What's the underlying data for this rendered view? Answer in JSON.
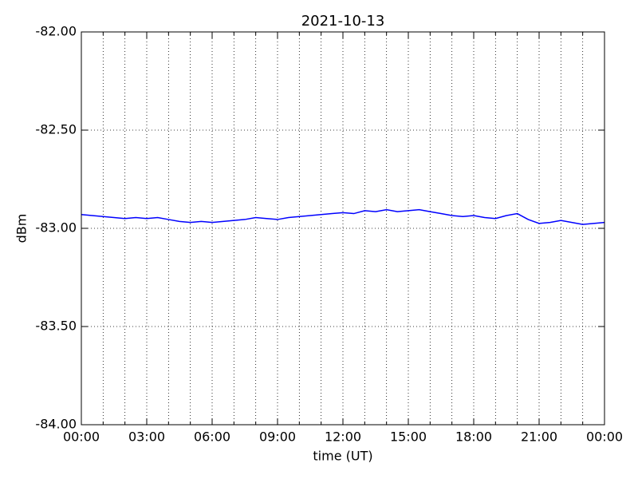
{
  "chart_data": {
    "type": "line",
    "title": "2021-10-13",
    "xlabel": "time (UT)",
    "ylabel": "dBm",
    "x": [
      0,
      0.5,
      1,
      1.5,
      2,
      2.5,
      3,
      3.5,
      4,
      4.5,
      5,
      5.5,
      6,
      6.5,
      7,
      7.5,
      8,
      8.5,
      9,
      9.5,
      10,
      10.5,
      11,
      11.5,
      12,
      12.5,
      13,
      13.5,
      14,
      14.5,
      15,
      15.5,
      16,
      16.5,
      17,
      17.5,
      18,
      18.5,
      19,
      19.5,
      20,
      20.5,
      21,
      21.5,
      22,
      22.5,
      23,
      23.5,
      24
    ],
    "series": [
      {
        "color": "#0000ff",
        "values": [
          -82.93,
          -82.935,
          -82.94,
          -82.945,
          -82.95,
          -82.945,
          -82.95,
          -82.945,
          -82.955,
          -82.965,
          -82.97,
          -82.965,
          -82.97,
          -82.965,
          -82.96,
          -82.955,
          -82.945,
          -82.95,
          -82.955,
          -82.945,
          -82.94,
          -82.935,
          -82.93,
          -82.925,
          -82.92,
          -82.925,
          -82.91,
          -82.915,
          -82.905,
          -82.915,
          -82.91,
          -82.905,
          -82.915,
          -82.925,
          -82.935,
          -82.94,
          -82.935,
          -82.945,
          -82.95,
          -82.935,
          -82.925,
          -82.955,
          -82.975,
          -82.97,
          -82.96,
          -82.97,
          -82.98,
          -82.975,
          -82.97
        ]
      }
    ],
    "xlim": [
      0,
      24
    ],
    "xticks": [
      {
        "value": 0,
        "label": "00:00"
      },
      {
        "value": 3,
        "label": "03:00"
      },
      {
        "value": 6,
        "label": "06:00"
      },
      {
        "value": 9,
        "label": "09:00"
      },
      {
        "value": 12,
        "label": "12:00"
      },
      {
        "value": 15,
        "label": "15:00"
      },
      {
        "value": 18,
        "label": "18:00"
      },
      {
        "value": 21,
        "label": "21:00"
      },
      {
        "value": 24,
        "label": "00:00"
      }
    ],
    "xminorticks": [
      1,
      2,
      4,
      5,
      7,
      8,
      10,
      11,
      13,
      14,
      16,
      17,
      19,
      20,
      22,
      23
    ],
    "ylim": [
      -84,
      -82
    ],
    "yticks": [
      {
        "value": -84,
        "label": "-84.00"
      },
      {
        "value": -83.5,
        "label": "-83.50"
      },
      {
        "value": -83,
        "label": "-83.00"
      },
      {
        "value": -82.5,
        "label": "-82.50"
      },
      {
        "value": -82,
        "label": "-82.00"
      }
    ],
    "grid": true
  }
}
